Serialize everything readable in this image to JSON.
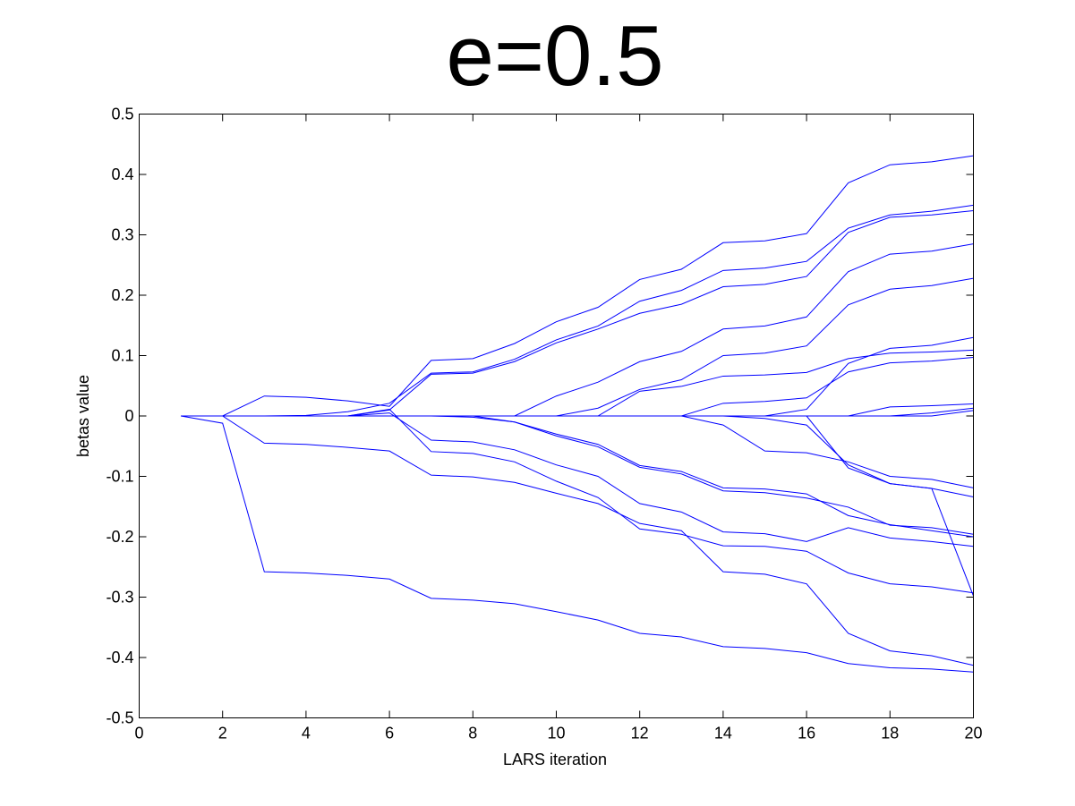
{
  "chart_data": {
    "type": "line",
    "title": "e=0.5",
    "xlabel": "LARS iteration",
    "ylabel": "betas value",
    "xlim": [
      0,
      20
    ],
    "ylim": [
      -0.5,
      0.5
    ],
    "xticks": [
      0,
      2,
      4,
      6,
      8,
      10,
      12,
      14,
      16,
      18,
      20
    ],
    "yticks": [
      -0.5,
      -0.4,
      -0.3,
      -0.2,
      -0.1,
      0,
      0.1,
      0.2,
      0.3,
      0.4,
      0.5
    ],
    "grid": false,
    "legend": "none",
    "line_color": "#0000ff",
    "x": [
      1,
      2,
      3,
      4,
      5,
      6,
      7,
      8,
      9,
      10,
      11,
      12,
      13,
      14,
      15,
      16,
      17,
      18,
      19,
      20
    ],
    "series": [
      {
        "values": [
          0,
          0,
          0.033,
          0.031,
          0.025,
          0.016,
          0.092,
          0.095,
          0.12,
          0.156,
          0.18,
          0.226,
          0.243,
          0.287,
          0.29,
          0.302,
          0.386,
          0.416,
          0.421,
          0.431
        ]
      },
      {
        "values": [
          0,
          0,
          0,
          0.001,
          0.007,
          0.021,
          0.071,
          0.073,
          0.094,
          0.126,
          0.149,
          0.19,
          0.208,
          0.241,
          0.245,
          0.256,
          0.311,
          0.333,
          0.339,
          0.349
        ]
      },
      {
        "values": [
          0,
          0,
          0,
          0,
          0,
          0.01,
          0.069,
          0.071,
          0.09,
          0.121,
          0.144,
          0.17,
          0.185,
          0.214,
          0.218,
          0.231,
          0.304,
          0.329,
          0.333,
          0.34
        ]
      },
      {
        "values": [
          0,
          0,
          0,
          0,
          0,
          0,
          0,
          0,
          0,
          0.033,
          0.056,
          0.09,
          0.107,
          0.144,
          0.149,
          0.164,
          0.239,
          0.268,
          0.273,
          0.285
        ]
      },
      {
        "values": [
          0,
          0,
          0,
          0,
          0,
          0,
          0,
          0,
          0,
          0,
          0.013,
          0.044,
          0.06,
          0.1,
          0.104,
          0.116,
          0.184,
          0.21,
          0.216,
          0.228
        ]
      },
      {
        "values": [
          0,
          0,
          0,
          0,
          0,
          0,
          0,
          0,
          0,
          0,
          0,
          0.041,
          0.049,
          0.066,
          0.068,
          0.072,
          0.095,
          0.104,
          0.106,
          0.109
        ]
      },
      {
        "values": [
          0,
          0,
          0,
          0,
          0,
          0,
          0,
          0,
          0,
          0,
          0,
          0,
          0,
          0.021,
          0.024,
          0.03,
          0.073,
          0.088,
          0.091,
          0.097
        ]
      },
      {
        "values": [
          0,
          0,
          0,
          0,
          0,
          0,
          0,
          0,
          0,
          0,
          0,
          0,
          0,
          0,
          0,
          0.011,
          0.087,
          0.112,
          0.117,
          0.13
        ]
      },
      {
        "values": [
          0,
          0,
          0,
          0,
          0,
          0,
          0,
          0,
          0,
          0,
          0,
          0,
          0,
          0,
          0,
          0,
          0,
          0.015,
          0.017,
          0.02
        ]
      },
      {
        "values": [
          0,
          0,
          0,
          0,
          0,
          0,
          0,
          0,
          0,
          0,
          0,
          0,
          0,
          0,
          0,
          0,
          0,
          0,
          0.005,
          0.013
        ]
      },
      {
        "values": [
          0,
          0,
          0,
          0,
          0,
          0,
          0,
          0,
          0,
          0,
          0,
          0,
          0,
          0,
          0,
          0,
          0,
          0,
          0,
          0.009
        ]
      },
      {
        "values": [
          0,
          0,
          0,
          0,
          0,
          0,
          0,
          0,
          0,
          0,
          0,
          0,
          0,
          -0.015,
          -0.058,
          -0.061,
          -0.076,
          -0.1,
          -0.105,
          -0.119
        ]
      },
      {
        "values": [
          0,
          0,
          0,
          0,
          0,
          0,
          0,
          0,
          0,
          0,
          0,
          0,
          0,
          0,
          -0.004,
          -0.015,
          -0.081,
          -0.112,
          -0.12,
          -0.134
        ]
      },
      {
        "values": [
          0,
          0,
          0,
          0,
          0,
          0,
          0,
          0,
          -0.01,
          -0.033,
          -0.051,
          -0.085,
          -0.096,
          -0.124,
          -0.127,
          -0.136,
          -0.151,
          -0.181,
          -0.185,
          -0.196
        ]
      },
      {
        "values": [
          0,
          0,
          0,
          0,
          0,
          0,
          0,
          -0.002,
          -0.01,
          -0.03,
          -0.047,
          -0.082,
          -0.092,
          -0.119,
          -0.121,
          -0.129,
          -0.165,
          -0.18,
          -0.19,
          -0.2
        ]
      },
      {
        "values": [
          0,
          0,
          0,
          0,
          0,
          0.005,
          -0.04,
          -0.043,
          -0.056,
          -0.081,
          -0.1,
          -0.145,
          -0.159,
          -0.192,
          -0.195,
          -0.208,
          -0.185,
          -0.202,
          -0.208,
          -0.216
        ]
      },
      {
        "values": [
          0,
          0,
          0,
          0,
          0,
          0.011,
          -0.059,
          -0.062,
          -0.076,
          -0.108,
          -0.135,
          -0.187,
          -0.196,
          -0.215,
          -0.216,
          -0.224,
          -0.26,
          -0.278,
          -0.283,
          -0.293
        ]
      },
      {
        "values": [
          0,
          0,
          -0.045,
          -0.047,
          -0.052,
          -0.058,
          -0.098,
          -0.101,
          -0.11,
          -0.128,
          -0.145,
          -0.178,
          -0.19,
          -0.258,
          -0.262,
          -0.278,
          -0.36,
          -0.389,
          -0.397,
          -0.413
        ]
      },
      {
        "values": [
          0,
          -0.012,
          -0.258,
          -0.26,
          -0.264,
          -0.27,
          -0.302,
          -0.305,
          -0.311,
          -0.324,
          -0.338,
          -0.36,
          -0.366,
          -0.382,
          -0.385,
          -0.392,
          -0.41,
          -0.417,
          -0.419,
          -0.424
        ]
      },
      {
        "values": [
          0,
          0,
          0,
          0,
          0,
          0,
          0,
          0,
          0,
          0,
          0,
          0,
          0,
          0,
          0,
          0,
          -0.086,
          -0.112,
          -0.12,
          -0.298
        ]
      }
    ]
  }
}
